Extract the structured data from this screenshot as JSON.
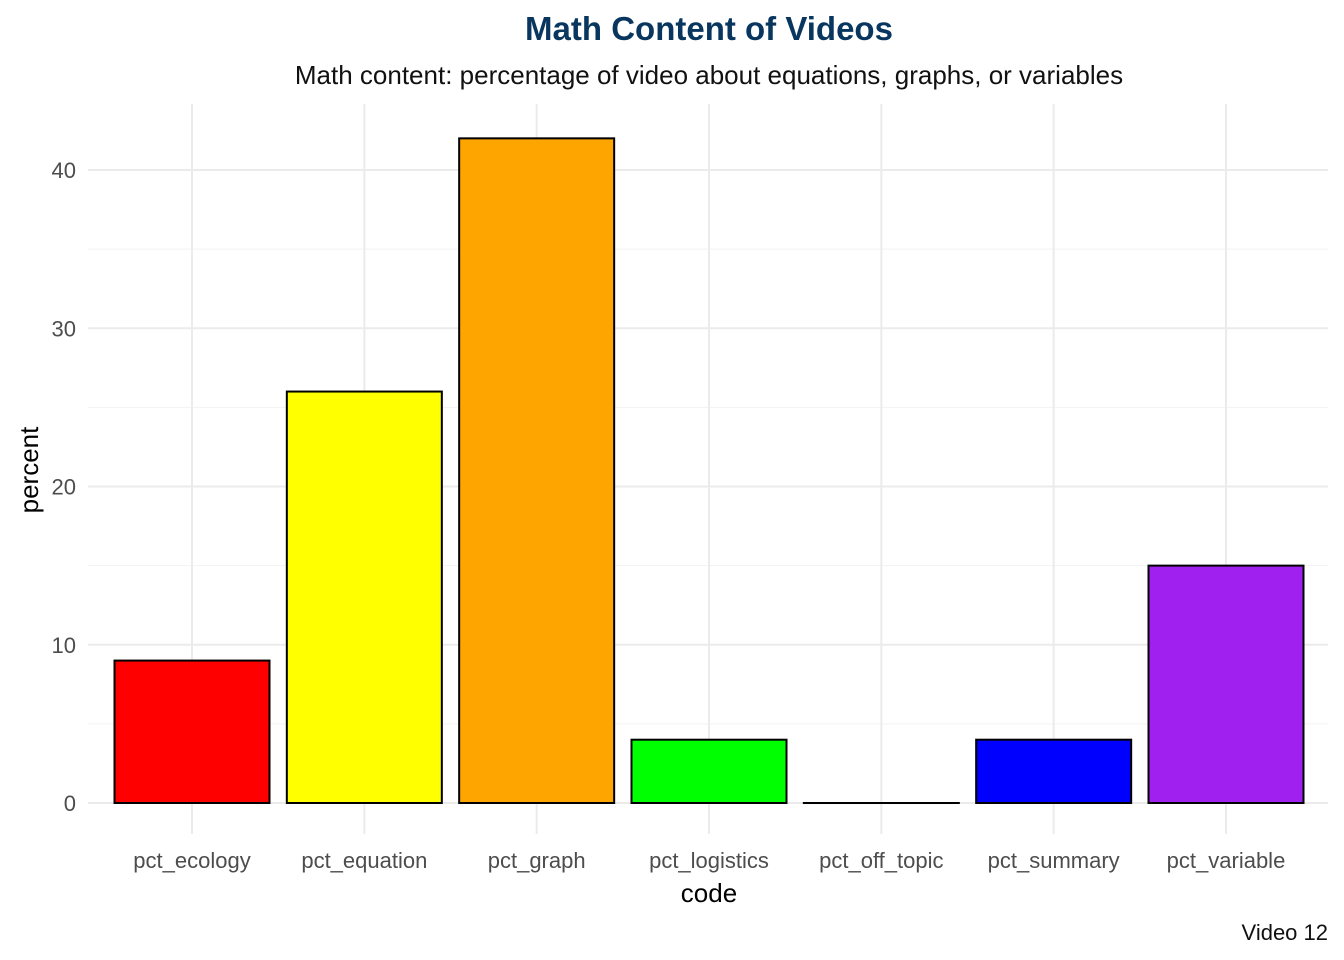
{
  "chart_data": {
    "type": "bar",
    "title": "Math Content of Videos",
    "subtitle": "Math content: percentage of video about equations, graphs, or variables",
    "xlabel": "code",
    "ylabel": "percent",
    "caption": "Video 12",
    "categories": [
      "pct_ecology",
      "pct_equation",
      "pct_graph",
      "pct_logistics",
      "pct_off_topic",
      "pct_summary",
      "pct_variable"
    ],
    "values": [
      9,
      26,
      42,
      4,
      0,
      4,
      15
    ],
    "colors": [
      "#ff0000",
      "#ffff00",
      "#ffa500",
      "#00ff00",
      "#ffffff",
      "#0000ff",
      "#a020f0"
    ],
    "yticks": [
      0,
      10,
      20,
      30,
      40
    ],
    "ylim": [
      -1.5,
      44
    ],
    "grid": true,
    "legend": "none"
  }
}
